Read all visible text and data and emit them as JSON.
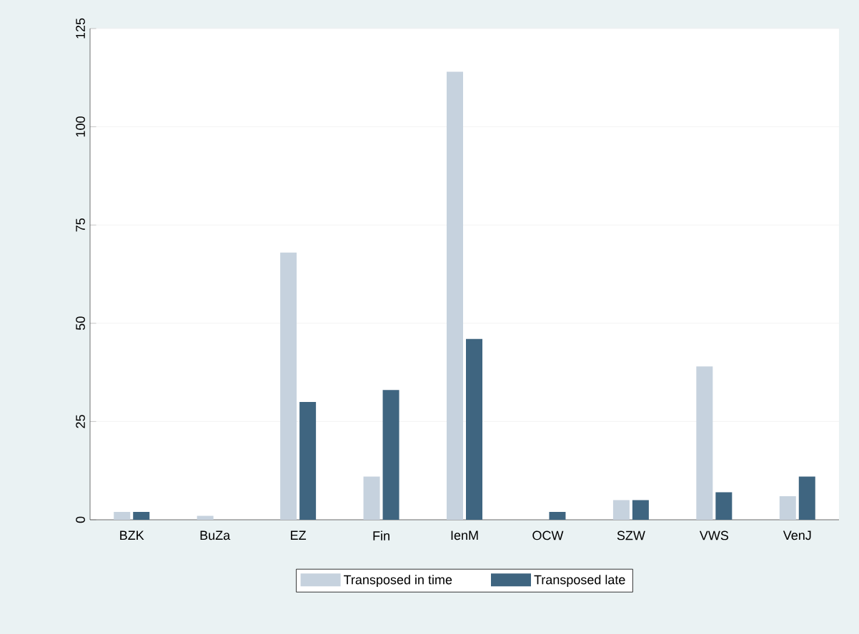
{
  "chart_data": {
    "type": "bar",
    "categories": [
      "BZK",
      "BuZa",
      "EZ",
      "Fin",
      "IenM",
      "OCW",
      "SZW",
      "VWS",
      "VenJ"
    ],
    "series": [
      {
        "name": "Transposed in time",
        "color": "#c6d2de",
        "values": [
          2,
          1,
          68,
          11,
          114,
          0,
          5,
          39,
          6
        ]
      },
      {
        "name": "Transposed late",
        "color": "#3f6580",
        "values": [
          2,
          0,
          30,
          33,
          46,
          2,
          5,
          7,
          11
        ]
      }
    ],
    "ylim": [
      0,
      125
    ],
    "yticks": [
      0,
      25,
      50,
      75,
      100,
      125
    ],
    "grid": "y",
    "legend": "bottom"
  }
}
